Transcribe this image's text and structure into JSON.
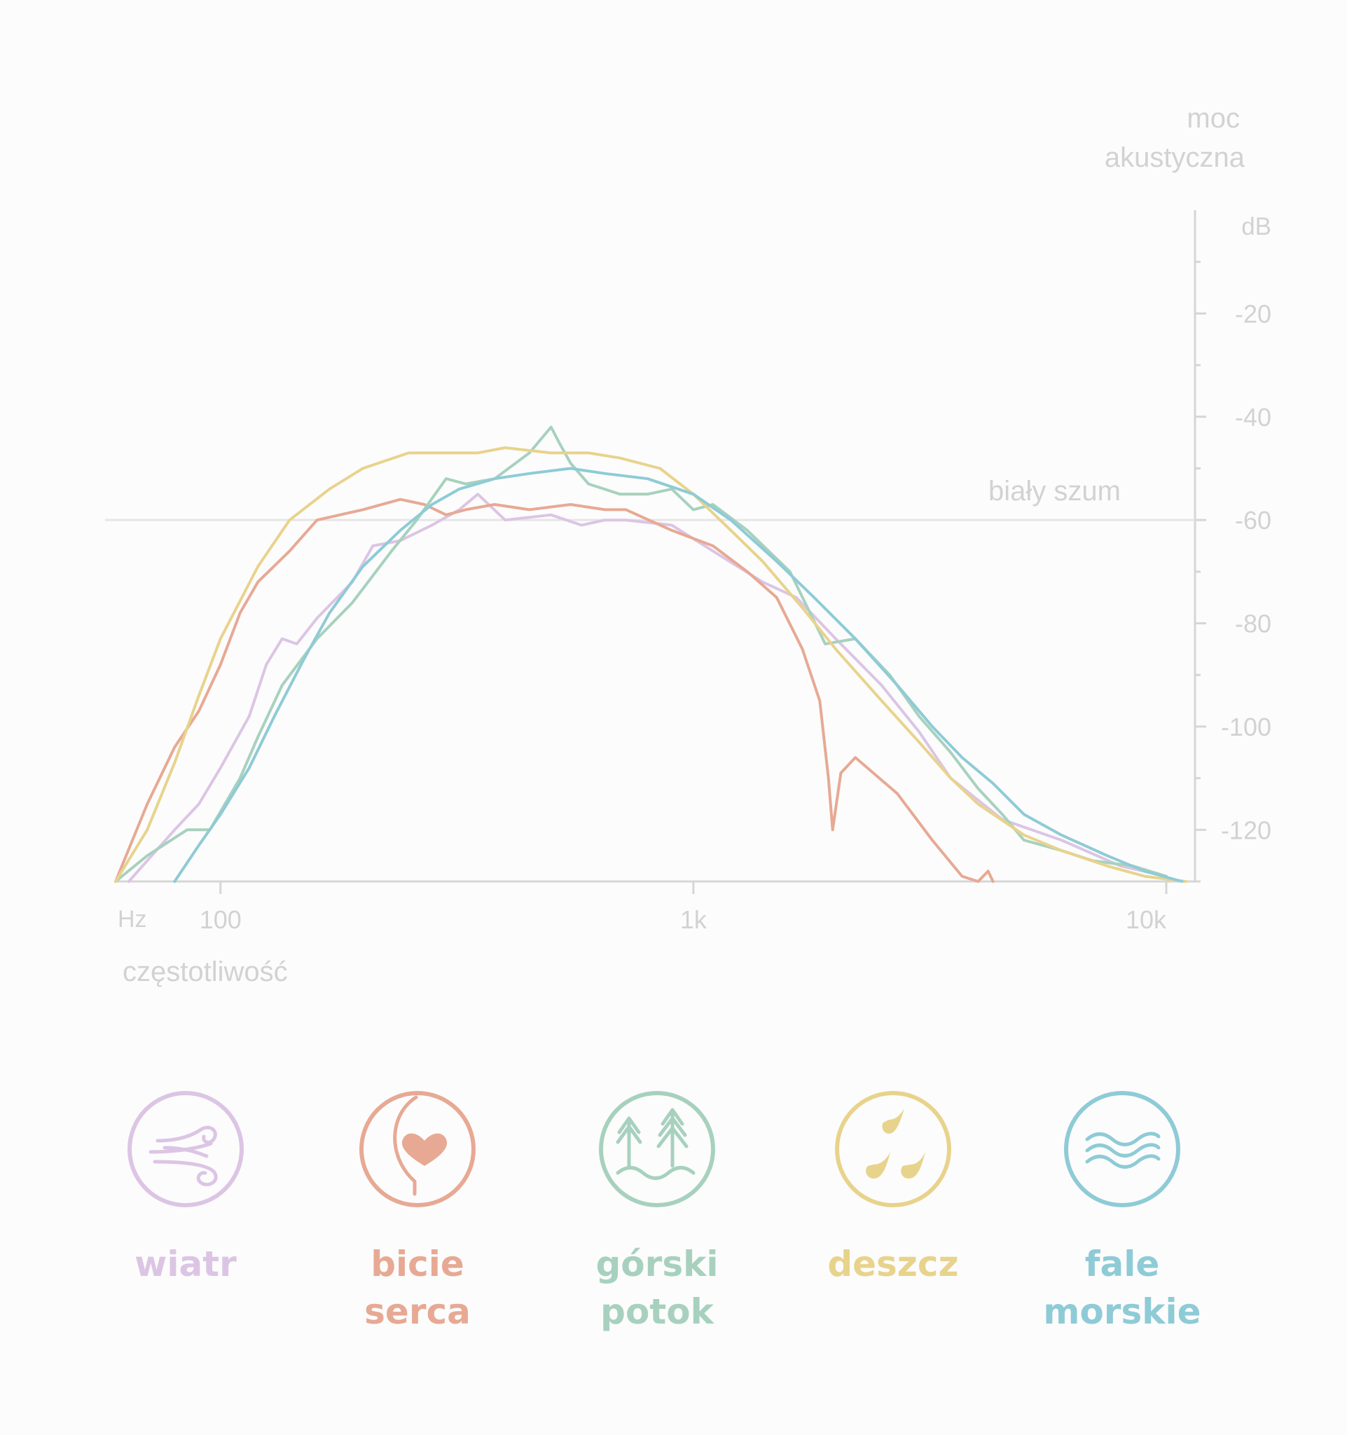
{
  "chart_data": {
    "type": "line",
    "title": "",
    "ylabel_lines": [
      "moc",
      "akustyczna"
    ],
    "yunit": "dB",
    "xunit": "Hz",
    "xlabel": "częstotliwość",
    "xscale": "log",
    "xlim": [
      60,
      11500
    ],
    "ylim": [
      -130,
      0
    ],
    "yticks": [
      -20,
      -40,
      -60,
      -80,
      -100,
      -120
    ],
    "xticks": [
      100,
      1000,
      10000
    ],
    "xtick_labels": [
      "100",
      "1k",
      "10k"
    ],
    "reference_line": {
      "y": -60,
      "label": "biały szum"
    },
    "series": [
      {
        "name": "wiatr",
        "color": "#dcc5e4",
        "x": [
          64,
          80,
          90,
          100,
          115,
          125,
          135,
          145,
          160,
          190,
          210,
          240,
          280,
          320,
          350,
          400,
          500,
          580,
          650,
          720,
          900,
          1100,
          1400,
          1650,
          2000,
          2500,
          3000,
          3500,
          4500,
          6000,
          8000,
          10000
        ],
        "y": [
          -130,
          -120,
          -115,
          -108,
          -98,
          -88,
          -83,
          -84,
          -79,
          -72,
          -65,
          -64,
          -61,
          -58,
          -55,
          -60,
          -59,
          -61,
          -60,
          -60,
          -61,
          -66,
          -72,
          -75,
          -83,
          -92,
          -101,
          -110,
          -118,
          -122,
          -127,
          -129
        ]
      },
      {
        "name": "bicie serca",
        "color": "#e7a994",
        "x": [
          57,
          70,
          80,
          90,
          100,
          110,
          120,
          140,
          160,
          200,
          240,
          270,
          300,
          330,
          380,
          450,
          550,
          650,
          720,
          900,
          1100,
          1300,
          1500,
          1700,
          1850,
          1930,
          1970,
          2050,
          2200,
          2700,
          3200,
          3700,
          4000,
          4200,
          4300
        ],
        "y": [
          -132,
          -115,
          -104,
          -97,
          -88,
          -78,
          -72,
          -66,
          -60,
          -58,
          -56,
          -57,
          -59,
          -58,
          -57,
          -58,
          -57,
          -58,
          -58,
          -62,
          -65,
          -70,
          -75,
          -85,
          -95,
          -110,
          -120,
          -109,
          -106,
          -113,
          -122,
          -129,
          -130,
          -128,
          -130
        ]
      },
      {
        "name": "górski potok",
        "color": "#a7d1be",
        "x": [
          57,
          70,
          85,
          95,
          110,
          120,
          135,
          160,
          190,
          230,
          260,
          300,
          330,
          380,
          450,
          500,
          520,
          550,
          600,
          700,
          800,
          900,
          1000,
          1100,
          1300,
          1600,
          1900,
          2200,
          2600,
          3000,
          3500,
          4000,
          4500,
          5000,
          6000,
          7000,
          8500,
          10000
        ],
        "y": [
          -132,
          -125,
          -120,
          -120,
          -110,
          -102,
          -92,
          -83,
          -76,
          -66,
          -60,
          -52,
          -53,
          -52,
          -47,
          -42,
          -45,
          -49,
          -53,
          -55,
          -55,
          -54,
          -58,
          -57,
          -62,
          -70,
          -84,
          -83,
          -90,
          -98,
          -105,
          -112,
          -117,
          -122,
          -124,
          -126,
          -127,
          -129
        ]
      },
      {
        "name": "deszcz",
        "color": "#e8d38c",
        "x": [
          57,
          70,
          80,
          90,
          100,
          120,
          140,
          170,
          200,
          250,
          300,
          350,
          400,
          500,
          600,
          700,
          850,
          1000,
          1200,
          1400,
          1700,
          2000,
          2500,
          3000,
          3500,
          4000,
          5000,
          6000,
          7500,
          9000,
          11000
        ],
        "y": [
          -132,
          -120,
          -107,
          -94,
          -83,
          -69,
          -60,
          -54,
          -50,
          -47,
          -47,
          -47,
          -46,
          -47,
          -47,
          -48,
          -50,
          -55,
          -62,
          -68,
          -77,
          -85,
          -95,
          -103,
          -110,
          -115,
          -121,
          -124,
          -127,
          -129,
          -130
        ]
      },
      {
        "name": "fale morskie",
        "color": "#8ecbd6",
        "x": [
          80,
          90,
          100,
          115,
          130,
          150,
          170,
          200,
          240,
          280,
          320,
          380,
          450,
          550,
          650,
          800,
          1000,
          1200,
          1500,
          1800,
          2200,
          2700,
          3200,
          3700,
          4300,
          5000,
          6000,
          7500,
          9000,
          10800
        ],
        "y": [
          -130,
          -123,
          -117,
          -108,
          -98,
          -87,
          -78,
          -69,
          -62,
          -57,
          -54,
          -52,
          -51,
          -50,
          -51,
          -52,
          -55,
          -60,
          -68,
          -75,
          -83,
          -92,
          -100,
          -106,
          -111,
          -117,
          -121,
          -125,
          -128,
          -130
        ]
      }
    ]
  },
  "legend": [
    {
      "icon": "wind-icon",
      "label_lines": [
        "wiatr"
      ],
      "color": "#dcc5e4"
    },
    {
      "icon": "heartbeat-icon",
      "label_lines": [
        "bicie",
        "serca"
      ],
      "color": "#e7a994"
    },
    {
      "icon": "mountain-stream-icon",
      "label_lines": [
        "górski",
        "potok"
      ],
      "color": "#a7d1be"
    },
    {
      "icon": "rain-icon",
      "label_lines": [
        "deszcz"
      ],
      "color": "#e8d38c"
    },
    {
      "icon": "sea-waves-icon",
      "label_lines": [
        "fale",
        "morskie"
      ],
      "color": "#8ecbd6"
    }
  ]
}
